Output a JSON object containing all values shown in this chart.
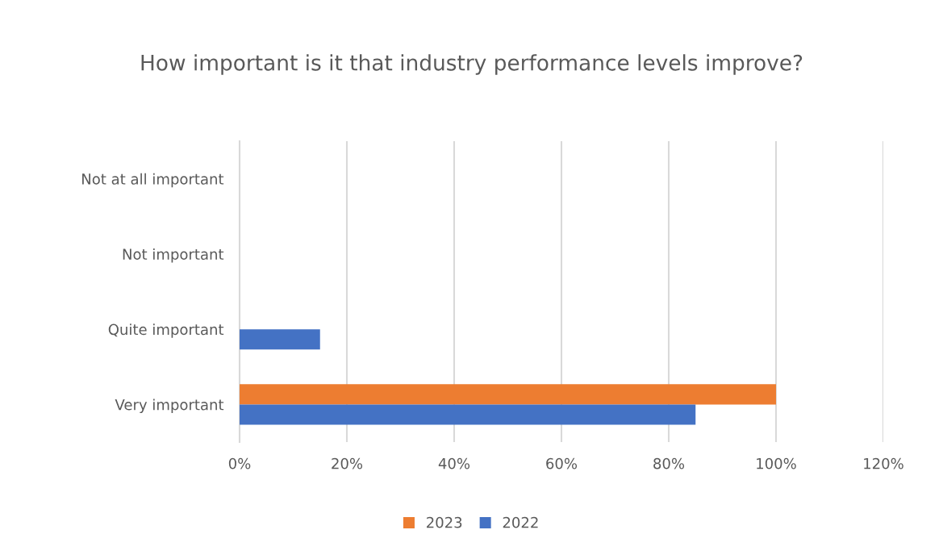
{
  "chart_data": {
    "type": "bar",
    "orientation": "horizontal",
    "title": "How important is it that industry performance levels improve?",
    "categories": [
      "Not at all important",
      "Not important",
      "Quite important",
      "Very important"
    ],
    "series": [
      {
        "name": "2023",
        "color": "#ed7d31",
        "values": [
          0,
          0,
          0,
          100
        ]
      },
      {
        "name": "2022",
        "color": "#4472c4",
        "values": [
          0,
          0,
          15,
          85
        ]
      }
    ],
    "xlim": [
      0,
      120
    ],
    "xticks": [
      {
        "value": 0,
        "label": "0%"
      },
      {
        "value": 20,
        "label": "20%"
      },
      {
        "value": 40,
        "label": "40%"
      },
      {
        "value": 60,
        "label": "60%"
      },
      {
        "value": 80,
        "label": "80%"
      },
      {
        "value": 100,
        "label": "100%"
      },
      {
        "value": 120,
        "label": "120%"
      }
    ],
    "grid": "x",
    "legend": "bottom"
  }
}
